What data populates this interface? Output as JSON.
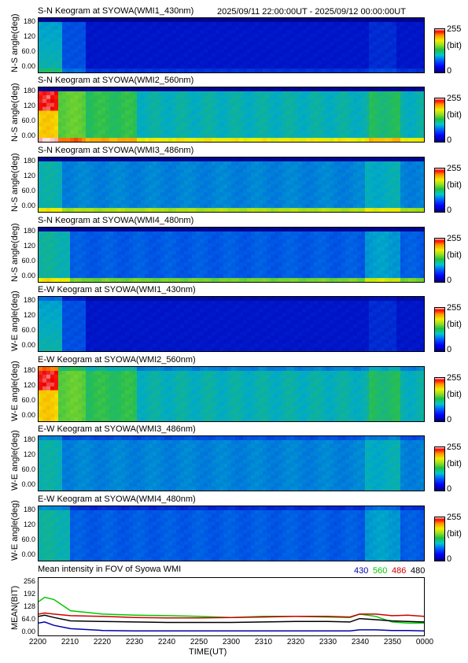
{
  "date_range": "2025/09/11 22:00:00UT - 2025/09/12 00:00:00UT",
  "keogram_ticks": [
    "180",
    "120",
    "60.0",
    "0.00"
  ],
  "colorbar": {
    "max": "255",
    "unit": "(bit)",
    "min": "0"
  },
  "panels": [
    {
      "title": "S-N Keogram at SYOWA(WMI1_430nm)",
      "ylabel": "N-S angle(deg)",
      "profile": "p430",
      "ns": true
    },
    {
      "title": "S-N Keogram at SYOWA(WMI2_560nm)",
      "ylabel": "N-S angle(deg)",
      "profile": "p560",
      "ns": true
    },
    {
      "title": "S-N Keogram at SYOWA(WMI3_486nm)",
      "ylabel": "N-S angle(deg)",
      "profile": "p486",
      "ns": true
    },
    {
      "title": "S-N Keogram at SYOWA(WMI4_480nm)",
      "ylabel": "N-S angle(deg)",
      "profile": "p480",
      "ns": true
    },
    {
      "title": "E-W Keogram at SYOWA(WMI1_430nm)",
      "ylabel": "W-E angle(deg)",
      "profile": "p430",
      "ns": false
    },
    {
      "title": "E-W Keogram at SYOWA(WMI2_560nm)",
      "ylabel": "W-E angle(deg)",
      "profile": "p560",
      "ns": false
    },
    {
      "title": "E-W Keogram at SYOWA(WMI3_486nm)",
      "ylabel": "W-E angle(deg)",
      "profile": "p486",
      "ns": false
    },
    {
      "title": "E-W Keogram at SYOWA(WMI4_480nm)",
      "ylabel": "W-E angle(deg)",
      "profile": "p480",
      "ns": false
    }
  ],
  "mean_panel": {
    "title": "Mean intensity in FOV of Syowa WMI",
    "ylabel": "MEAN(BIT)",
    "yticks": [
      "256",
      "192",
      "128",
      "64.0",
      "0.00"
    ],
    "xlabel": "TIME(UT)",
    "xticks": [
      "2200",
      "2210",
      "2220",
      "2230",
      "2240",
      "2250",
      "2300",
      "2310",
      "2320",
      "2330",
      "2340",
      "2350",
      "0000"
    ],
    "legend": [
      {
        "label": "430",
        "color": "#0000aa"
      },
      {
        "label": "560",
        "color": "#00c800"
      },
      {
        "label": "486",
        "color": "#cc0000"
      },
      {
        "label": "480",
        "color": "#000000"
      }
    ]
  },
  "chart_data": {
    "type": "line",
    "title": "Mean intensity in FOV of Syowa WMI",
    "xlabel": "TIME(UT)",
    "ylabel": "MEAN(BIT)",
    "x": [
      "2200",
      "2202",
      "2205",
      "2210",
      "2220",
      "2230",
      "2240",
      "2250",
      "2300",
      "2310",
      "2320",
      "2330",
      "2337",
      "2340",
      "2345",
      "2350",
      "2355",
      "0000"
    ],
    "ylim": [
      0,
      256
    ],
    "series": [
      {
        "name": "430",
        "color": "#0000aa",
        "values": [
          55,
          60,
          45,
          30,
          22,
          20,
          20,
          20,
          20,
          20,
          20,
          20,
          20,
          25,
          25,
          22,
          22,
          20
        ]
      },
      {
        "name": "560",
        "color": "#00c800",
        "values": [
          150,
          170,
          160,
          110,
          95,
          90,
          88,
          85,
          80,
          85,
          85,
          82,
          80,
          95,
          85,
          60,
          55,
          55
        ]
      },
      {
        "name": "486",
        "color": "#cc0000",
        "values": [
          95,
          100,
          95,
          88,
          85,
          80,
          78,
          78,
          80,
          82,
          85,
          85,
          82,
          95,
          95,
          88,
          90,
          85
        ]
      },
      {
        "name": "480",
        "color": "#000000",
        "values": [
          85,
          90,
          80,
          65,
          62,
          60,
          58,
          58,
          58,
          60,
          62,
          62,
          60,
          75,
          70,
          65,
          62,
          60
        ]
      }
    ]
  }
}
